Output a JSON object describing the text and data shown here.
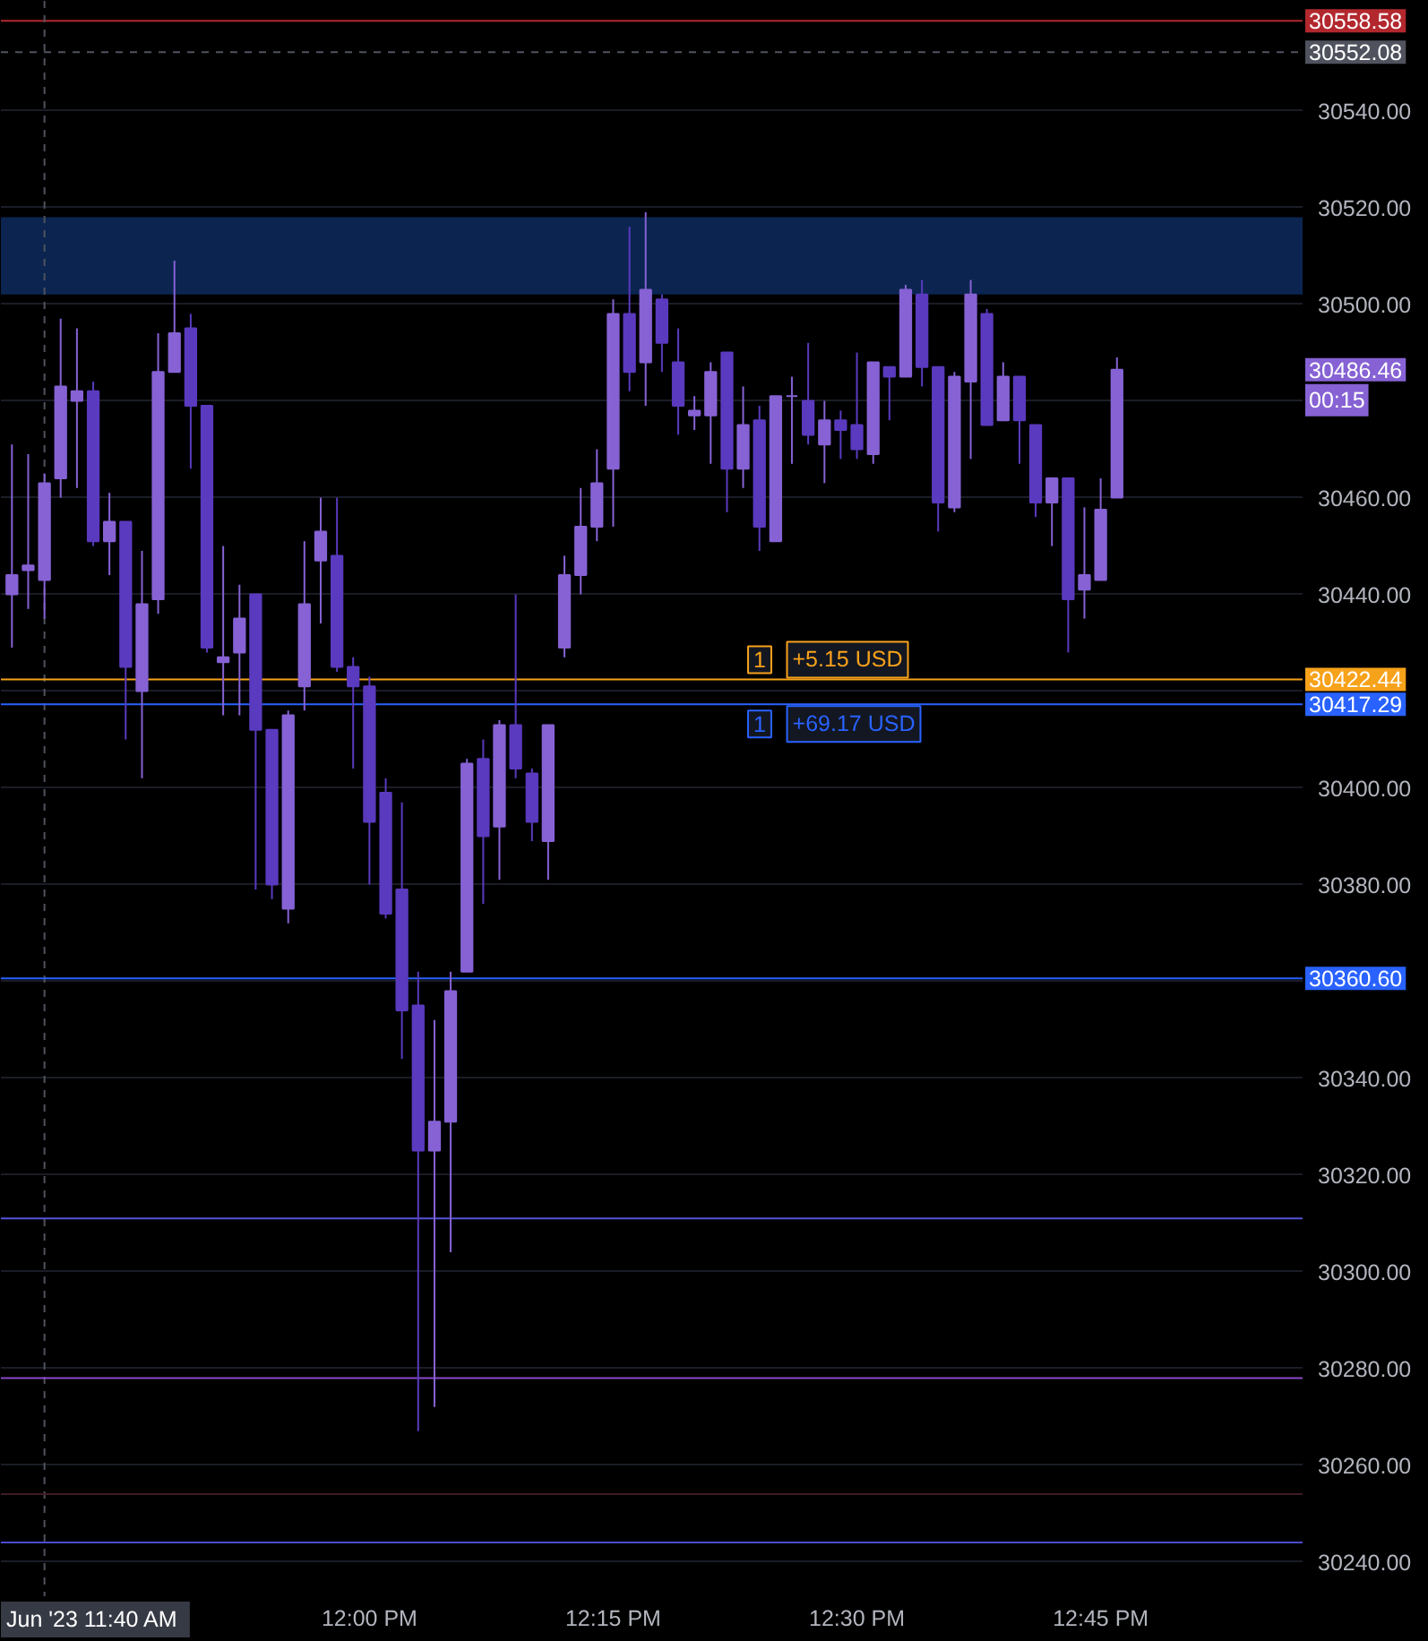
{
  "chart_data": {
    "type": "candlestick",
    "x": [
      11.6333,
      11.65,
      11.6667,
      11.6833,
      11.7,
      11.7167,
      11.7333,
      11.75,
      11.7667,
      11.7833,
      11.8,
      11.8167,
      11.8333,
      11.85,
      11.8667,
      11.8833,
      11.9,
      11.9167,
      11.9333,
      11.95,
      11.9667,
      11.9833,
      12,
      12.0167,
      12.0333,
      12.05,
      12.0667,
      12.0833,
      12.1,
      12.1167,
      12.1333,
      12.15,
      12.1667,
      12.1833,
      12.2,
      12.2167,
      12.2333,
      12.25,
      12.2667,
      12.2833,
      12.3,
      12.3167,
      12.3333,
      12.35,
      12.3667,
      12.3833,
      12.4,
      12.4167,
      12.4333,
      12.45,
      12.4667,
      12.4833,
      12.5,
      12.5167,
      12.5333,
      12.55,
      12.5667,
      12.5833,
      12.6,
      12.6167,
      12.6333,
      12.65,
      12.6667,
      12.6833,
      12.7,
      12.7167,
      12.7333,
      12.75,
      12.7667
    ],
    "ohlc": [
      [
        30440,
        30471,
        30429,
        30444
      ],
      [
        30445,
        30469,
        30437,
        30446
      ],
      [
        30443,
        30465,
        30435,
        30463
      ],
      [
        30464,
        30497,
        30460,
        30483
      ],
      [
        30480,
        30495,
        30462,
        30482
      ],
      [
        30482,
        30484,
        30450,
        30451
      ],
      [
        30451,
        30461,
        30444,
        30455
      ],
      [
        30455,
        30455,
        30410,
        30425
      ],
      [
        30420,
        30449,
        30402,
        30438
      ],
      [
        30439,
        30494,
        30436,
        30486
      ],
      [
        30486,
        30509,
        30486,
        30494
      ],
      [
        30495,
        30498,
        30466,
        30479
      ],
      [
        30479,
        30479,
        30428,
        30429
      ],
      [
        30426,
        30450,
        30415,
        30427
      ],
      [
        30428,
        30442,
        30415,
        30435
      ],
      [
        30440,
        30440,
        30379,
        30412
      ],
      [
        30412,
        30412,
        30377,
        30380
      ],
      [
        30375,
        30416,
        30372,
        30415
      ],
      [
        30421,
        30451,
        30416,
        30438
      ],
      [
        30447,
        30460,
        30434,
        30453
      ],
      [
        30448,
        30460,
        30424,
        30425
      ],
      [
        30425,
        30427,
        30404,
        30421
      ],
      [
        30421,
        30423,
        30380,
        30393
      ],
      [
        30399,
        30402,
        30373,
        30374
      ],
      [
        30379,
        30397,
        30344,
        30354
      ],
      [
        30355,
        30362,
        30267,
        30325
      ],
      [
        30325,
        30352,
        30272,
        30331
      ],
      [
        30331,
        30362,
        30304,
        30358
      ],
      [
        30362,
        30406,
        30362,
        30405
      ],
      [
        30406,
        30410,
        30376,
        30390
      ],
      [
        30392,
        30414,
        30381,
        30413
      ],
      [
        30413,
        30440,
        30402,
        30404
      ],
      [
        30403,
        30404,
        30389,
        30393
      ],
      [
        30389,
        30413,
        30381,
        30413
      ],
      [
        30429,
        30448,
        30427,
        30444
      ],
      [
        30444,
        30462,
        30440,
        30454
      ],
      [
        30454,
        30470,
        30451,
        30463
      ],
      [
        30466,
        30501,
        30454,
        30498
      ],
      [
        30498,
        30516,
        30482,
        30486
      ],
      [
        30488,
        30519,
        30479,
        30503
      ],
      [
        30501,
        30502,
        30486,
        30492
      ],
      [
        30488,
        30495,
        30473,
        30479
      ],
      [
        30477,
        30481,
        30474,
        30478
      ],
      [
        30477,
        30488,
        30467,
        30486
      ],
      [
        30490,
        30490,
        30457,
        30466
      ],
      [
        30466,
        30483,
        30462,
        30475
      ],
      [
        30476,
        30479,
        30449,
        30454
      ],
      [
        30451,
        30481,
        30451,
        30481
      ],
      [
        30481,
        30485,
        30467,
        30481
      ],
      [
        30480,
        30492,
        30471,
        30473
      ],
      [
        30471,
        30480,
        30463,
        30476
      ],
      [
        30476,
        30478,
        30468,
        30474
      ],
      [
        30475,
        30490,
        30468,
        30470
      ],
      [
        30469,
        30488,
        30467,
        30488
      ],
      [
        30487,
        30487,
        30476,
        30485
      ],
      [
        30485,
        30504,
        30485,
        30503
      ],
      [
        30502,
        30505,
        30483,
        30487
      ],
      [
        30487,
        30487,
        30453,
        30459
      ],
      [
        30458,
        30486,
        30457,
        30485
      ],
      [
        30484,
        30505,
        30468,
        30502
      ],
      [
        30498,
        30499,
        30475,
        30475
      ],
      [
        30476,
        30488,
        30476,
        30485
      ],
      [
        30485,
        30485,
        30467,
        30476
      ],
      [
        30475,
        30475,
        30456,
        30459
      ],
      [
        30459,
        30464,
        30450,
        30464
      ],
      [
        30464,
        30464,
        30428,
        30439
      ],
      [
        30441,
        30458,
        30435,
        30444
      ],
      [
        30443,
        30464,
        30443,
        30457.5
      ],
      [
        30460,
        30489,
        30460,
        30486.46
      ]
    ],
    "colors": [
      "#8662d4",
      "#8662d4",
      "#8662d4",
      "#8662d4",
      "#8662d4",
      "#5a3abe",
      "#8662d4",
      "#5a3abe",
      "#8662d4",
      "#8662d4",
      "#8662d4",
      "#5a3abe",
      "#5a3abe",
      "#8662d4",
      "#8662d4",
      "#5a3abe",
      "#5a3abe",
      "#8662d4",
      "#8662d4",
      "#8662d4",
      "#5a3abe",
      "#5a3abe",
      "#5a3abe",
      "#5a3abe",
      "#5a3abe",
      "#5a3abe",
      "#8662d4",
      "#8662d4",
      "#8662d4",
      "#5a3abe",
      "#8662d4",
      "#5a3abe",
      "#5a3abe",
      "#8662d4",
      "#8662d4",
      "#8662d4",
      "#8662d4",
      "#8662d4",
      "#5a3abe",
      "#8662d4",
      "#5a3abe",
      "#5a3abe",
      "#8662d4",
      "#8662d4",
      "#5a3abe",
      "#8662d4",
      "#5a3abe",
      "#8662d4",
      "#8662d4",
      "#5a3abe",
      "#8662d4",
      "#5a3abe",
      "#5a3abe",
      "#8662d4",
      "#5a3abe",
      "#8662d4",
      "#5a3abe",
      "#5a3abe",
      "#8662d4",
      "#8662d4",
      "#5a3abe",
      "#8662d4",
      "#5a3abe",
      "#5a3abe",
      "#8662d4",
      "#5a3abe",
      "#8662d4",
      "#8662d4",
      "#8662d4"
    ],
    "xlim": [
      11.622,
      12.958
    ],
    "ylim": [
      30232.7,
      30562.7
    ],
    "xticks": [
      {
        "value": 12,
        "label": "12:00 PM"
      },
      {
        "value": 12.25,
        "label": "12:15 PM"
      },
      {
        "value": 12.5,
        "label": "12:30 PM"
      },
      {
        "value": 12.75,
        "label": "12:45 PM"
      }
    ],
    "yticks": [
      {
        "value": 30240,
        "label": "30240.00"
      },
      {
        "value": 30260,
        "label": "30260.00"
      },
      {
        "value": 30280,
        "label": "30280.00"
      },
      {
        "value": 30300,
        "label": "30300.00"
      },
      {
        "value": 30320,
        "label": "30320.00"
      },
      {
        "value": 30340,
        "label": "30340.00"
      },
      {
        "value": 30360,
        "label": null
      },
      {
        "value": 30380,
        "label": "30380.00"
      },
      {
        "value": 30400,
        "label": "30400.00"
      },
      {
        "value": 30420,
        "label": null
      },
      {
        "value": 30440,
        "label": "30440.00"
      },
      {
        "value": 30460,
        "label": "30460.00"
      },
      {
        "value": 30480,
        "label": null
      },
      {
        "value": 30500,
        "label": "30500.00"
      },
      {
        "value": 30520,
        "label": "30520.00"
      },
      {
        "value": 30540,
        "label": "30540.00"
      }
    ],
    "grid": "y",
    "bands": [
      {
        "axis": "y",
        "from": 30502,
        "to": 30518,
        "color": "#0b2550"
      }
    ],
    "ref_lines": [
      {
        "axis": "y",
        "value": 30558.58,
        "label": "30558.58",
        "color": "#b2282e"
      },
      {
        "axis": "y",
        "value": 30552.08,
        "label": "30552.08",
        "color": "#50535e",
        "line_style": "dashed"
      },
      {
        "axis": "x",
        "value": 11.6667,
        "color": "#50535e",
        "line_style": "dashed"
      },
      {
        "axis": "y",
        "value": 30422.44,
        "label": "30422.44",
        "color": "#f7a21b"
      },
      {
        "axis": "y",
        "value": 30417.29,
        "label": "30417.29",
        "color": "#2962ff"
      },
      {
        "axis": "y",
        "value": 30360.6,
        "label": "30360.60",
        "color": "#2962ff"
      },
      {
        "axis": "y",
        "value": 30311,
        "color": "#5652d8"
      },
      {
        "axis": "y",
        "value": 30278,
        "color": "#8a48cc"
      },
      {
        "axis": "y",
        "value": 30254,
        "color": "#3f1d24"
      },
      {
        "axis": "y",
        "value": 30244,
        "color": "#4b4bcf"
      }
    ],
    "annotations": [
      "30486.46",
      "00:15",
      "Jun '23  11:40 AM",
      {
        "text": "1",
        "y": 30422.44
      },
      {
        "text": "+5.15 USD",
        "y": 30422.44
      },
      {
        "text": "1",
        "y": 30417.29
      },
      {
        "text": "+69.17 USD",
        "y": 30417.29
      }
    ]
  }
}
